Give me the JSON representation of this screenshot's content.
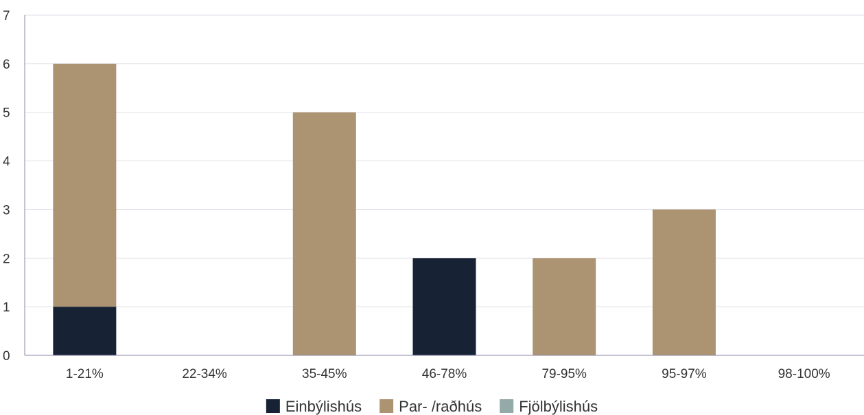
{
  "chart_data": {
    "type": "bar",
    "stacked": true,
    "categories": [
      "1-21%",
      "22-34%",
      "35-45%",
      "46-78%",
      "79-95%",
      "95-97%",
      "98-100%"
    ],
    "series": [
      {
        "name": "Einbýlishús",
        "color": "#172335",
        "values": [
          1,
          0,
          0,
          2,
          0,
          0,
          0
        ]
      },
      {
        "name": "Par- /raðhús",
        "color": "#ac9372",
        "values": [
          5,
          0,
          5,
          0,
          2,
          3,
          0
        ]
      },
      {
        "name": "Fjölbýlishús",
        "color": "#93aaa8",
        "values": [
          0,
          0,
          0,
          0,
          0,
          0,
          0
        ]
      }
    ],
    "y_ticks": [
      "0",
      "1",
      "2",
      "3",
      "4",
      "5",
      "6",
      "7"
    ],
    "ylim": [
      0,
      7
    ],
    "grid": true,
    "legend_position": "bottom"
  }
}
